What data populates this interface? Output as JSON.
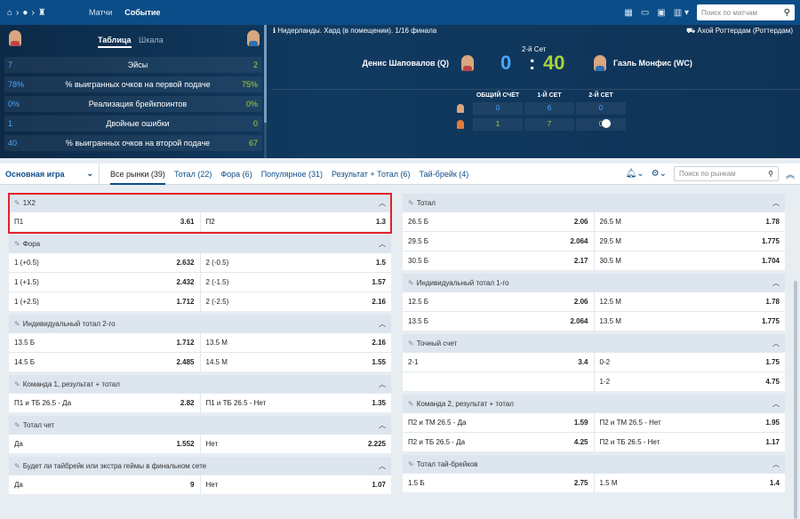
{
  "topbar": {
    "nav": [
      "Матчи",
      "Событие"
    ],
    "search_placeholder": "Поиск по матчам"
  },
  "stats": {
    "tabs": [
      "Таблица",
      "Шкала"
    ],
    "rows": [
      {
        "l": "7",
        "label": "Эйсы",
        "r": "2"
      },
      {
        "l": "78%",
        "label": "% выигранных очков на первой подаче",
        "r": "75%"
      },
      {
        "l": "0%",
        "label": "Реализация брейкпоинтов",
        "r": "0%"
      },
      {
        "l": "1",
        "label": "Двойные ошибки",
        "r": "0"
      },
      {
        "l": "40",
        "label": "% выигранных очков на второй подаче",
        "r": "67"
      }
    ]
  },
  "match": {
    "title": "Нидерланды. Хард (в помещении). 1/16 финала",
    "venue": "Ахой Роттердам (Роттердам)",
    "set": "2-й Сет",
    "p1": "Денис Шаповалов (Q)",
    "p2": "Гаэль Монфис (WC)",
    "s1": "0",
    "sep": ":",
    "s2": "40",
    "sb_headers": [
      "ОБЩИЙ СЧЁТ",
      "1-Й СЕТ",
      "2-Й СЕТ"
    ],
    "sb_rows": [
      [
        "0",
        "6",
        "0"
      ],
      [
        "1",
        "7",
        "0"
      ]
    ]
  },
  "markets_bar": {
    "main": "Основная игра",
    "tabs": [
      "Все рынки (39)",
      "Тотал (22)",
      "Фора (6)",
      "Популярное (31)",
      "Результат + Тотал (6)",
      "Тай-брейк (4)"
    ],
    "search_placeholder": "Поиск по рынкам"
  },
  "left": [
    {
      "title": "1X2",
      "rows": [
        [
          [
            "П1",
            "3.61"
          ],
          [
            "П2",
            "1.3"
          ]
        ]
      ]
    },
    {
      "title": "Фора",
      "rows": [
        [
          [
            "1 (+0.5)",
            "2.632"
          ],
          [
            "2 (-0.5)",
            "1.5"
          ]
        ],
        [
          [
            "1 (+1.5)",
            "2.432"
          ],
          [
            "2 (-1.5)",
            "1.57"
          ]
        ],
        [
          [
            "1 (+2.5)",
            "1.712"
          ],
          [
            "2 (-2.5)",
            "2.16"
          ]
        ]
      ]
    },
    {
      "title": "Индивидуальный тотал 2-го",
      "rows": [
        [
          [
            "13.5 Б",
            "1.712"
          ],
          [
            "13.5 М",
            "2.16"
          ]
        ],
        [
          [
            "14.5 Б",
            "2.485"
          ],
          [
            "14.5 М",
            "1.55"
          ]
        ]
      ]
    },
    {
      "title": "Команда 1, результат + тотал",
      "rows": [
        [
          [
            "П1 и ТБ 26.5 - Да",
            "2.82"
          ],
          [
            "П1 и ТБ 26.5 - Нет",
            "1.35"
          ]
        ]
      ]
    },
    {
      "title": "Тотал чет",
      "rows": [
        [
          [
            "Да",
            "1.552"
          ],
          [
            "Нет",
            "2.225"
          ]
        ]
      ]
    },
    {
      "title": "Будет ли тайбрейк или экстра геймы в финальном сете",
      "rows": [
        [
          [
            "Да",
            "9"
          ],
          [
            "Нет",
            "1.07"
          ]
        ]
      ]
    }
  ],
  "right": [
    {
      "title": "Тотал",
      "rows": [
        [
          [
            "26.5 Б",
            "2.06"
          ],
          [
            "26.5 М",
            "1.78"
          ]
        ],
        [
          [
            "29.5 Б",
            "2.064"
          ],
          [
            "29.5 М",
            "1.775"
          ]
        ],
        [
          [
            "30.5 Б",
            "2.17"
          ],
          [
            "30.5 М",
            "1.704"
          ]
        ]
      ]
    },
    {
      "title": "Индивидуальный тотал 1-го",
      "rows": [
        [
          [
            "12.5 Б",
            "2.06"
          ],
          [
            "12.5 М",
            "1.78"
          ]
        ],
        [
          [
            "13.5 Б",
            "2.064"
          ],
          [
            "13.5 М",
            "1.775"
          ]
        ]
      ]
    },
    {
      "title": "Точный счет",
      "rows": [
        [
          [
            "2-1",
            "3.4"
          ],
          [
            "0-2",
            "1.75"
          ]
        ],
        [
          [
            "",
            ""
          ],
          [
            "1-2",
            "4.75"
          ]
        ]
      ]
    },
    {
      "title": "Команда 2, результат + тотал",
      "rows": [
        [
          [
            "П2 и ТМ 26.5 - Да",
            "1.59"
          ],
          [
            "П2 и ТМ 26.5 - Нет",
            "1.95"
          ]
        ],
        [
          [
            "П2 и ТБ 26.5 - Да",
            "4.25"
          ],
          [
            "П2 и ТБ 26.5 - Нет",
            "1.17"
          ]
        ]
      ]
    },
    {
      "title": "Тотал тай-брейков",
      "rows": [
        [
          [
            "1.5 Б",
            "2.75"
          ],
          [
            "1.5 М",
            "1.4"
          ]
        ]
      ]
    }
  ]
}
